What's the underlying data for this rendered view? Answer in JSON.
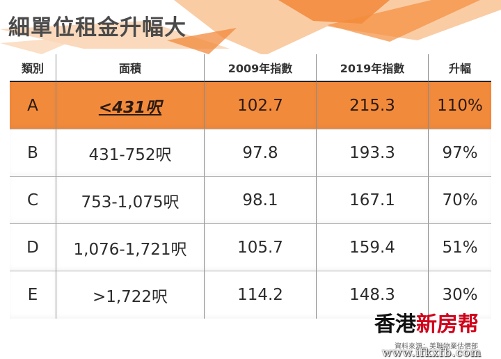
{
  "title": "細單位租金升幅大",
  "table": {
    "headers": [
      "類別",
      "面積",
      "2009年指數",
      "2019年指數",
      "升幅"
    ],
    "rows": [
      {
        "category": "A",
        "area": "<431呎",
        "index_2009": "102.7",
        "index_2019": "215.3",
        "change": "110%"
      },
      {
        "category": "B",
        "area": "431-752呎",
        "index_2009": "97.8",
        "index_2019": "193.3",
        "change": "97%"
      },
      {
        "category": "C",
        "area": "753-1,075呎",
        "index_2009": "98.1",
        "index_2019": "167.1",
        "change": "70%"
      },
      {
        "category": "D",
        "area": "1,076-1,721呎",
        "index_2009": "105.7",
        "index_2019": "159.4",
        "change": "51%"
      },
      {
        "category": "E",
        "area": ">1,722呎",
        "index_2009": "114.2",
        "index_2019": "148.3",
        "change": "30%"
      }
    ]
  },
  "brand": {
    "part1": "香港",
    "part2": "新房帮"
  },
  "source": "資料來源：美聯物業估價部",
  "watermark": "www.ifkxfb.com",
  "colors": {
    "highlight": "#f28a3c",
    "title": "#4a4a4a",
    "brand_red": "#d0021b"
  }
}
